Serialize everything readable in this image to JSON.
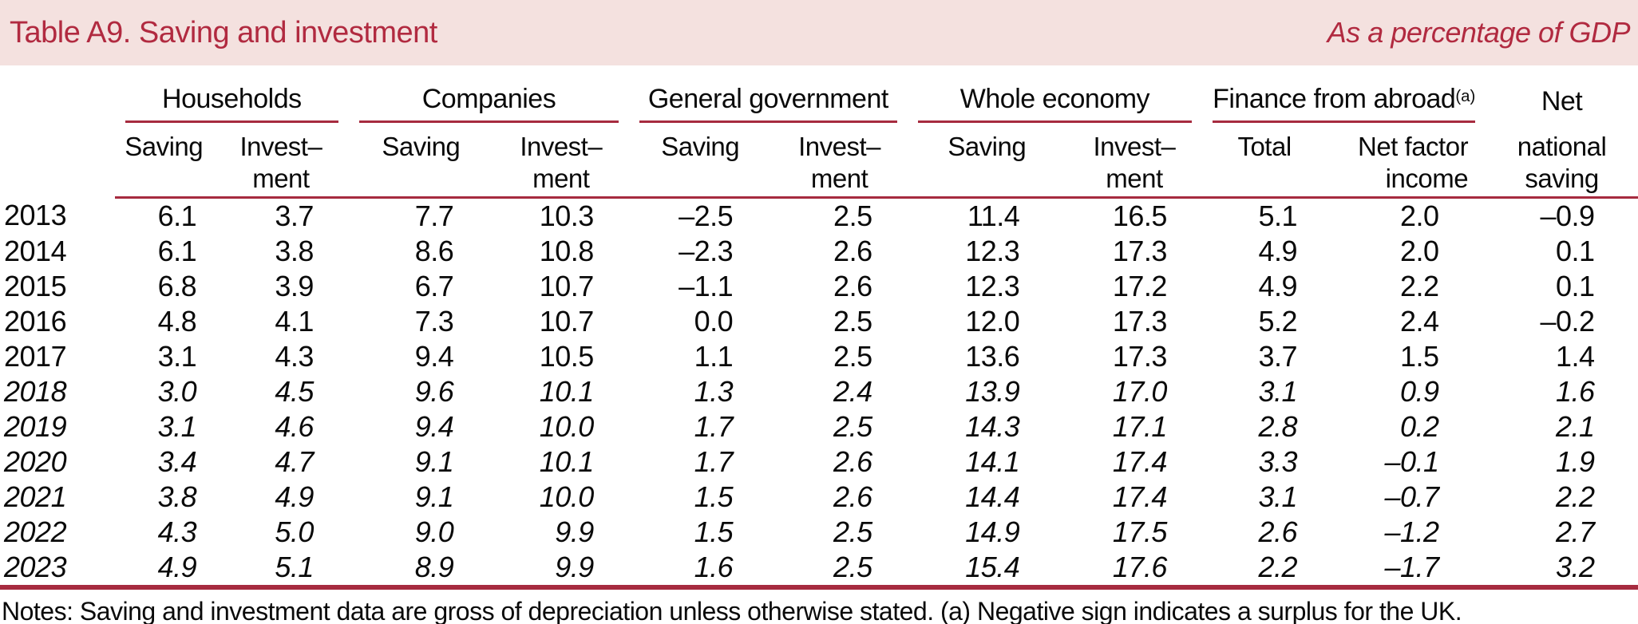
{
  "colors": {
    "pink": "#f4e1df",
    "crimson": "#b12a40",
    "rule": "#a62b3f",
    "ink": "#0a0a0a"
  },
  "title_bar": {
    "title": "Table A9. Saving and investment",
    "subtitle": "As a percentage of GDP"
  },
  "table": {
    "groups": [
      {
        "label": "Households"
      },
      {
        "label": "Companies"
      },
      {
        "label": "General government"
      },
      {
        "label": "Whole economy"
      },
      {
        "label": "Finance from abroad",
        "marker": "(a)"
      },
      {
        "label": "Net"
      }
    ],
    "subheaders": [
      "Saving",
      "Invest–\nment",
      "Saving",
      "Invest–\nment",
      "Saving",
      "Invest–\nment",
      "Saving",
      "Invest–\nment",
      "Total",
      "Net factor\nincome",
      "national\nsaving"
    ],
    "rows": [
      {
        "year": "2013",
        "italic": false,
        "values": [
          "6.1",
          "3.7",
          "7.7",
          "10.3",
          "–2.5",
          "2.5",
          "11.4",
          "16.5",
          "5.1",
          "2.0",
          "–0.9"
        ]
      },
      {
        "year": "2014",
        "italic": false,
        "values": [
          "6.1",
          "3.8",
          "8.6",
          "10.8",
          "–2.3",
          "2.6",
          "12.3",
          "17.3",
          "4.9",
          "2.0",
          "0.1"
        ]
      },
      {
        "year": "2015",
        "italic": false,
        "values": [
          "6.8",
          "3.9",
          "6.7",
          "10.7",
          "–1.1",
          "2.6",
          "12.3",
          "17.2",
          "4.9",
          "2.2",
          "0.1"
        ]
      },
      {
        "year": "2016",
        "italic": false,
        "values": [
          "4.8",
          "4.1",
          "7.3",
          "10.7",
          "0.0",
          "2.5",
          "12.0",
          "17.3",
          "5.2",
          "2.4",
          "–0.2"
        ]
      },
      {
        "year": "2017",
        "italic": false,
        "values": [
          "3.1",
          "4.3",
          "9.4",
          "10.5",
          "1.1",
          "2.5",
          "13.6",
          "17.3",
          "3.7",
          "1.5",
          "1.4"
        ]
      },
      {
        "year": "2018",
        "italic": true,
        "values": [
          "3.0",
          "4.5",
          "9.6",
          "10.1",
          "1.3",
          "2.4",
          "13.9",
          "17.0",
          "3.1",
          "0.9",
          "1.6"
        ]
      },
      {
        "year": "2019",
        "italic": true,
        "values": [
          "3.1",
          "4.6",
          "9.4",
          "10.0",
          "1.7",
          "2.5",
          "14.3",
          "17.1",
          "2.8",
          "0.2",
          "2.1"
        ]
      },
      {
        "year": "2020",
        "italic": true,
        "values": [
          "3.4",
          "4.7",
          "9.1",
          "10.1",
          "1.7",
          "2.6",
          "14.1",
          "17.4",
          "3.3",
          "–0.1",
          "1.9"
        ]
      },
      {
        "year": "2021",
        "italic": true,
        "values": [
          "3.8",
          "4.9",
          "9.1",
          "10.0",
          "1.5",
          "2.6",
          "14.4",
          "17.4",
          "3.1",
          "–0.7",
          "2.2"
        ]
      },
      {
        "year": "2022",
        "italic": true,
        "values": [
          "4.3",
          "5.0",
          "9.0",
          "9.9",
          "1.5",
          "2.5",
          "14.9",
          "17.5",
          "2.6",
          "–1.2",
          "2.7"
        ]
      },
      {
        "year": "2023",
        "italic": true,
        "values": [
          "4.9",
          "5.1",
          "8.9",
          "9.9",
          "1.6",
          "2.5",
          "15.4",
          "17.6",
          "2.2",
          "–1.7",
          "3.2"
        ]
      }
    ]
  },
  "notes": "Notes: Saving and investment data are gross of depreciation unless otherwise stated. (a) Negative sign indicates a surplus for the UK."
}
